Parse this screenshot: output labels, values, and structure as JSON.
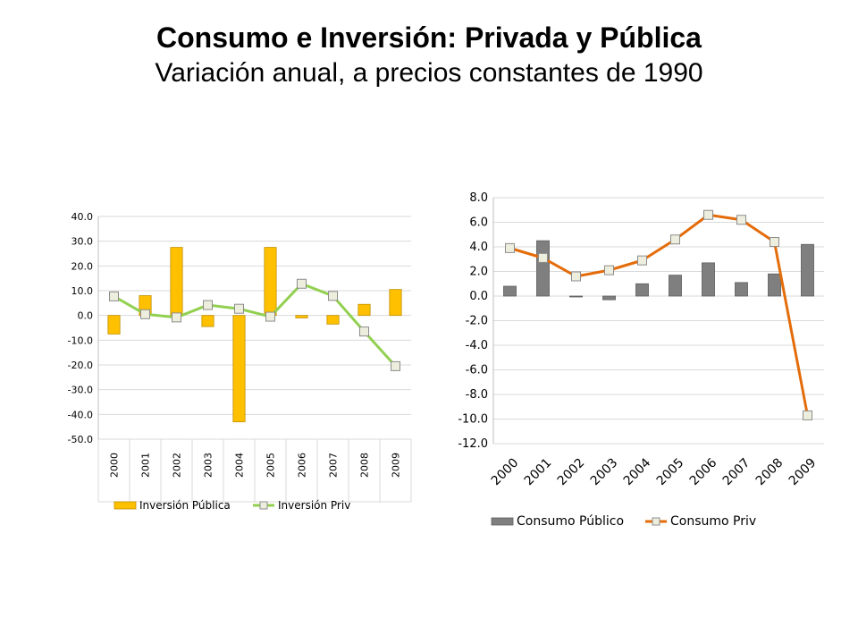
{
  "title": "Consumo e Inversión: Privada y Pública",
  "subtitle": "Variación anual,  a precios constantes de 1990",
  "chart_data": [
    {
      "type": "bar",
      "categories": [
        "2000",
        "2001",
        "2002",
        "2003",
        "2004",
        "2005",
        "2006",
        "2007",
        "2008",
        "2009"
      ],
      "series": [
        {
          "name": "Inversión Pública",
          "kind": "bar",
          "color": "#FFC000",
          "values": [
            -7.5,
            8.0,
            27.5,
            -4.5,
            -43.0,
            27.5,
            -1.0,
            -3.5,
            4.5,
            10.5
          ]
        },
        {
          "name": "Inversión Priv",
          "kind": "line",
          "color": "#92D050",
          "values": [
            7.7,
            0.5,
            -0.8,
            4.2,
            2.7,
            -0.5,
            12.8,
            7.9,
            -6.5,
            -20.5
          ]
        }
      ],
      "ylim": [
        -50,
        40
      ],
      "yticks": [
        "40.0",
        "30.0",
        "20.0",
        "10.0",
        "0.0",
        "-10.0",
        "-20.0",
        "-30.0",
        "-40.0",
        "-50.0"
      ],
      "legend_position": "bottom",
      "grid": true
    },
    {
      "type": "bar",
      "categories": [
        "2000",
        "2001",
        "2002",
        "2003",
        "2004",
        "2005",
        "2006",
        "2007",
        "2008",
        "2009"
      ],
      "series": [
        {
          "name": "Consumo Público",
          "kind": "bar",
          "color": "#7F7F7F",
          "values": [
            0.8,
            4.5,
            0.0,
            -0.3,
            1.0,
            1.7,
            2.7,
            1.1,
            1.8,
            4.2
          ]
        },
        {
          "name": "Consumo Priv",
          "kind": "line",
          "color": "#E46C0A",
          "values": [
            3.9,
            3.1,
            1.6,
            2.1,
            2.9,
            4.6,
            6.6,
            6.2,
            4.4,
            -9.7
          ]
        }
      ],
      "ylim": [
        -12,
        8
      ],
      "yticks": [
        "8.0",
        "6.0",
        "4.0",
        "2.0",
        "0.0",
        "-2.0",
        "-4.0",
        "-6.0",
        "-8.0",
        "-10.0",
        "-12.0"
      ],
      "legend_position": "bottom",
      "grid": true
    }
  ]
}
